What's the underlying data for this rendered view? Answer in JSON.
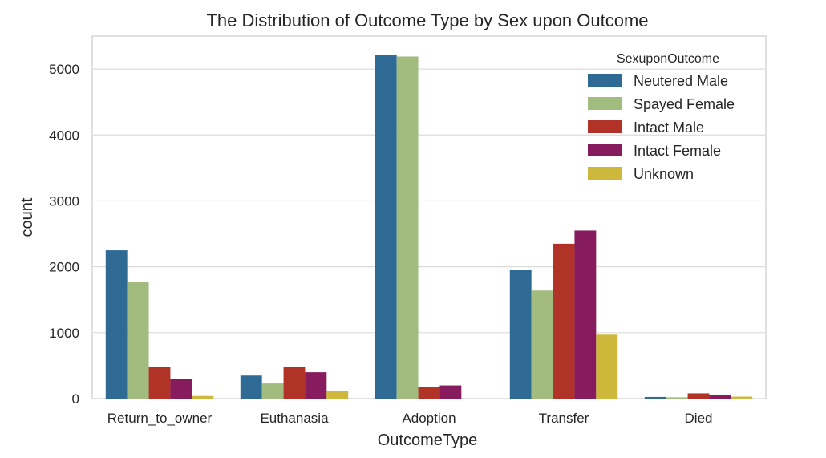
{
  "chart_data": {
    "type": "bar",
    "title": "The Distribution of Outcome Type by Sex upon Outcome",
    "xlabel": "OutcomeType",
    "ylabel": "count",
    "categories": [
      "Return_to_owner",
      "Euthanasia",
      "Adoption",
      "Transfer",
      "Died"
    ],
    "ylim": [
      0,
      5500
    ],
    "yticks": [
      0,
      1000,
      2000,
      3000,
      4000,
      5000
    ],
    "grid": true,
    "legend": {
      "title": "SexuponOutcome",
      "position": "top-right"
    },
    "series": [
      {
        "name": "Neutered Male",
        "color": "#2e6a94",
        "values": [
          2250,
          350,
          5220,
          1950,
          25
        ]
      },
      {
        "name": "Spayed Female",
        "color": "#a2bc80",
        "values": [
          1770,
          230,
          5190,
          1640,
          20
        ]
      },
      {
        "name": "Intact Male",
        "color": "#b13226",
        "values": [
          480,
          480,
          180,
          2350,
          80
        ]
      },
      {
        "name": "Intact Female",
        "color": "#861b5d",
        "values": [
          300,
          400,
          200,
          2550,
          55
        ]
      },
      {
        "name": "Unknown",
        "color": "#cdb83c",
        "values": [
          40,
          110,
          0,
          970,
          30
        ]
      }
    ]
  }
}
